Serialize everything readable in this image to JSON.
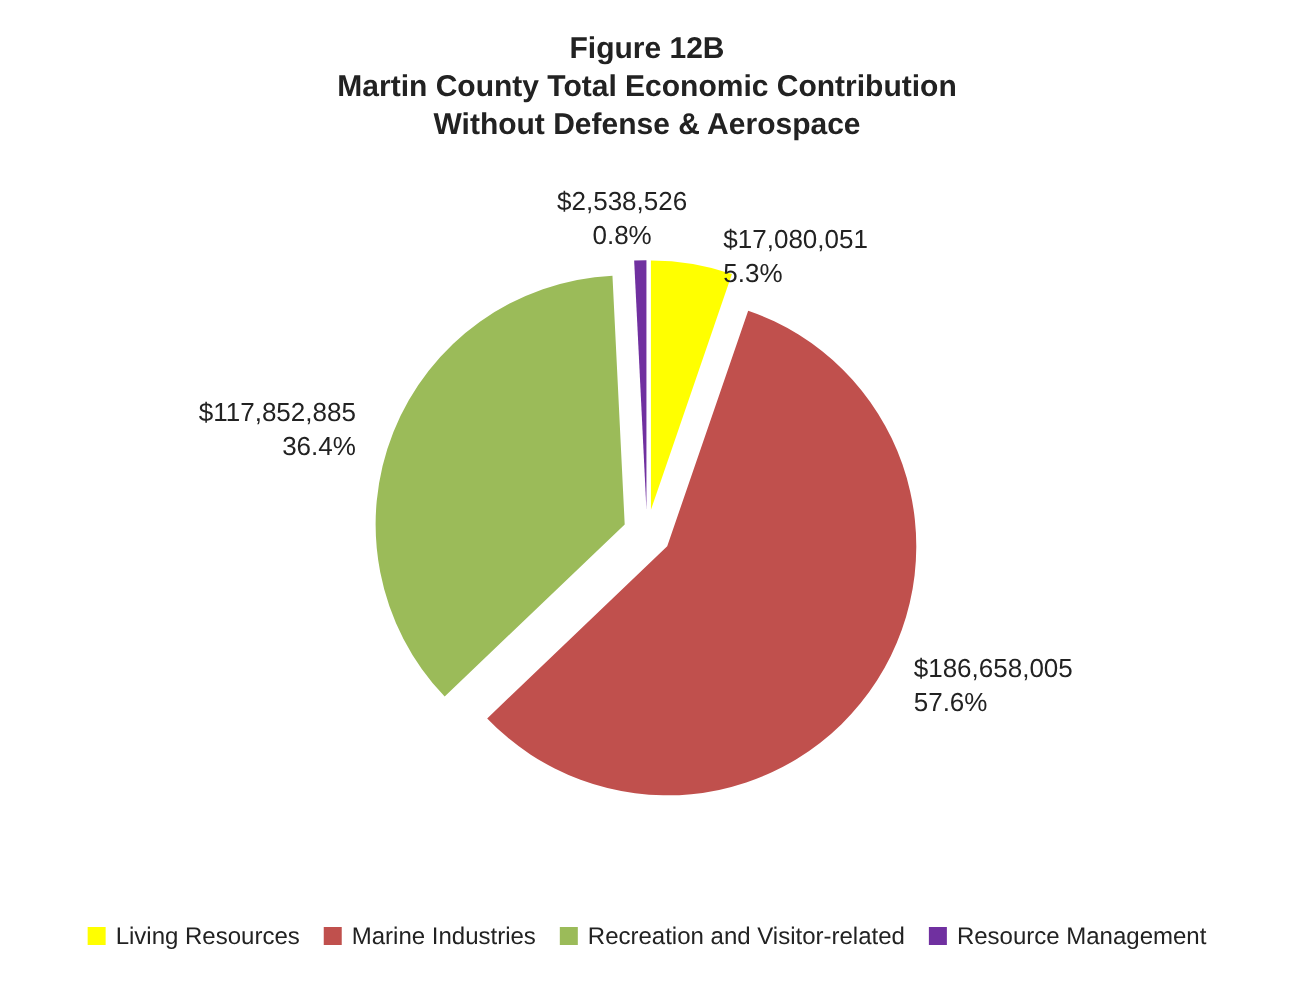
{
  "chart_data": {
    "type": "pie",
    "title": "Figure 12B",
    "subtitle": "Martin County Total Economic Contribution\nWithout Defense & Aerospace",
    "categories": [
      "Living Resources",
      "Marine Industries",
      "Recreation and Visitor-related",
      "Resource Management"
    ],
    "values": [
      17080051,
      186658005,
      117852885,
      2538526
    ],
    "value_labels": [
      "$17,080,051\n5.3%",
      "$186,658,005\n57.6%",
      "$117,852,885\n36.4%",
      "$2,538,526\n0.8%"
    ],
    "colors": [
      "#ffff00",
      "#c0504d",
      "#9bbb59",
      "#7030a0"
    ],
    "legend": "bottom"
  }
}
